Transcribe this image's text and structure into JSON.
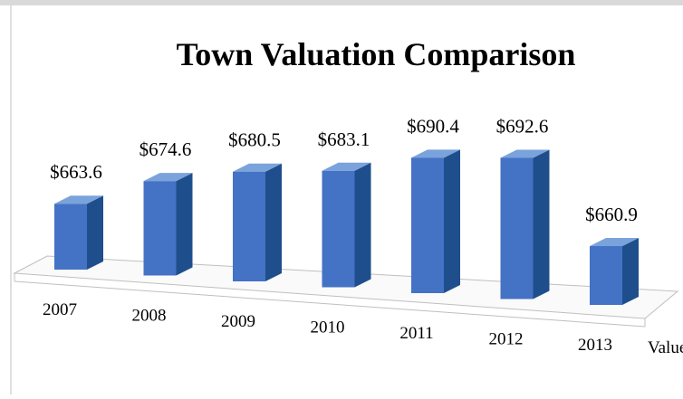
{
  "chart_data": {
    "type": "bar3d",
    "title": "Town Valuation Comparison",
    "categories": [
      "2007",
      "2008",
      "2009",
      "2010",
      "2011",
      "2012",
      "2013"
    ],
    "values": [
      663.6,
      674.6,
      680.5,
      683.1,
      690.4,
      692.6,
      660.9
    ],
    "value_labels": [
      "$663.6",
      "$674.6",
      "$680.5",
      "$683.1",
      "$690.4",
      "$692.6",
      "$660.9"
    ],
    "x_label": "Value",
    "color": "#4472c4"
  }
}
